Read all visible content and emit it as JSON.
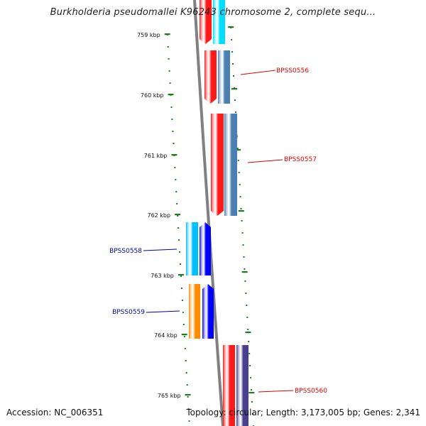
{
  "header": {
    "title": "Burkholderia pseudomallei K96243 chromosome 2, complete sequ..."
  },
  "footer": {
    "accession": "Accession: NC_006351",
    "summary": "Topology: circular; Length: 3,173,005 bp; Genes: 2,341"
  },
  "scale": {
    "ticks": [
      "759 kbp",
      "760 kbp",
      "761 kbp",
      "762 kbp",
      "763 kbp",
      "764 kbp",
      "765 kbp"
    ]
  },
  "genes": [
    {
      "name": "",
      "strand": "forward",
      "colors": [
        "#ff1a1a",
        "#00dfff"
      ]
    },
    {
      "name": "BPSS0556",
      "strand": "forward",
      "colors": [
        "#ff1a1a",
        "#4a7fb0"
      ],
      "label_color": "#dd0000"
    },
    {
      "name": "BPSS0557",
      "strand": "forward",
      "colors": [
        "#ff1a1a",
        "#4a7fb0"
      ],
      "label_color": "#dd0000"
    },
    {
      "name": "BPSS0558",
      "strand": "reverse",
      "colors": [
        "#00bfff",
        "#0000ff"
      ],
      "label_color": "#000099"
    },
    {
      "name": "BPSS0559",
      "strand": "reverse",
      "colors": [
        "#ff8c00",
        "#0000ff"
      ],
      "label_color": "#000099"
    },
    {
      "name": "BPSS0560",
      "strand": "forward",
      "colors": [
        "#ff1a1a",
        "#4a3f8c"
      ],
      "label_color": "#dd0000"
    }
  ]
}
